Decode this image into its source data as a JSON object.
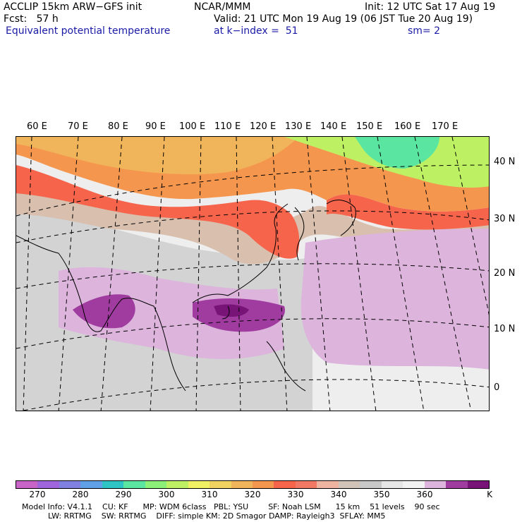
{
  "header": {
    "model": "ACCLIP 15km ARW−GFS init",
    "org": "NCAR/MMM",
    "init": "Init: 12 UTC Sat 17 Aug 19",
    "fcst": "Fcst:   57 h",
    "valid": "Valid: 21 UTC Mon 19 Aug 19 (06 JST Tue 20 Aug 19)",
    "field": "Equivalent potential temperature",
    "level": "at k−index =  51",
    "smooth": "sm= 2"
  },
  "lon_labels": [
    "60 E",
    "70 E",
    "80 E",
    "90 E",
    "100 E",
    "110 E",
    "120 E",
    "130 E",
    "140 E",
    "150 E",
    "160 E",
    "170 E"
  ],
  "lat_labels": [
    "40 N",
    "30 N",
    "20 N",
    "10 N",
    "0"
  ],
  "colorbar": {
    "ticks": [
      "270",
      "280",
      "290",
      "300",
      "310",
      "320",
      "330",
      "340",
      "350",
      "360"
    ],
    "unit": "K",
    "colors": [
      "#c864c8",
      "#a064dc",
      "#8080e0",
      "#5fa0e6",
      "#2ec4c4",
      "#5ae6a0",
      "#8cf078",
      "#bef064",
      "#f0f064",
      "#f0d260",
      "#f0b45a",
      "#f5964e",
      "#f5644b",
      "#f07864",
      "#eeb4a0",
      "#d2c3b9",
      "#c8c8c8",
      "#e6e6e6",
      "#f2f2f2",
      "#dcb4dc",
      "#a03ca0",
      "#781478"
    ]
  },
  "model_info": {
    "line1": "Model Info: V4.1.1    CU: KF      MP: WDM 6class   PBL: YSU        SF: Noah LSM      15 km    51 levels    90 sec",
    "line2": "LW: RRTMG    SW: RRTMG    DIFF: simple KM: 2D Smagor DAMP: Rayleigh3  SFLAY: MM5"
  }
}
